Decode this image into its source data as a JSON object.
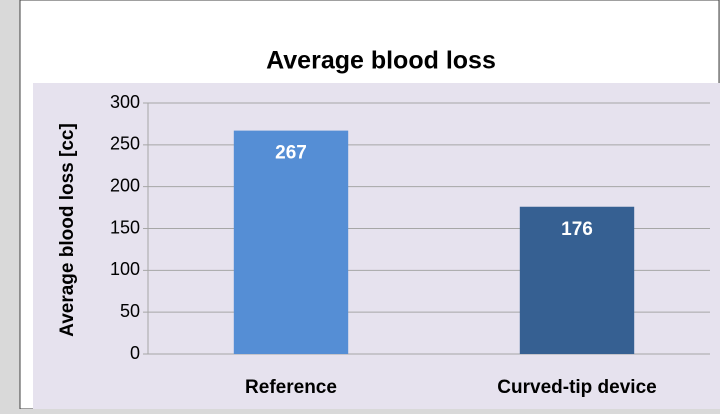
{
  "chart_data": {
    "type": "bar",
    "title": "Average blood loss",
    "y_label": "Average blood loss [cc]",
    "categories": [
      "Reference",
      "Curved-tip device"
    ],
    "values": [
      267,
      176
    ],
    "colors": [
      "#558ed5",
      "#366092"
    ],
    "ylim": [
      0,
      300
    ],
    "yticks": [
      0,
      50,
      100,
      150,
      200,
      250,
      300
    ],
    "grid": true
  }
}
